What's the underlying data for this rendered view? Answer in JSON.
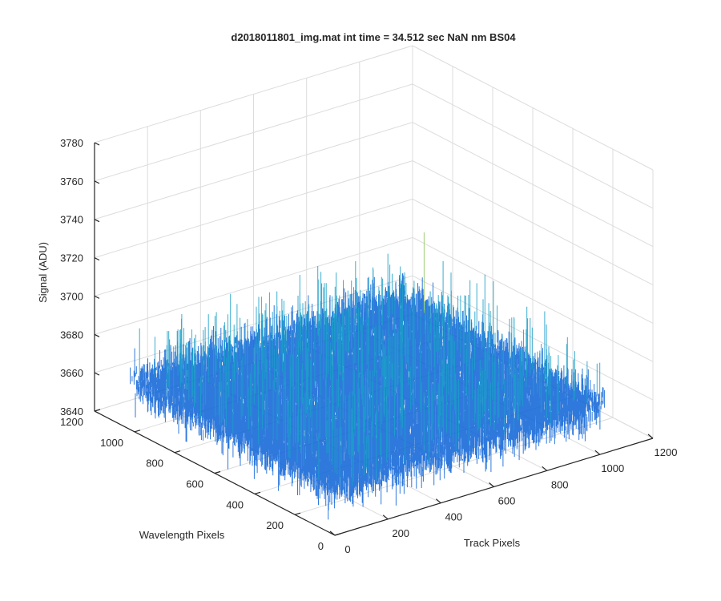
{
  "chart_data": {
    "type": "surface",
    "title": "d2018011801_img.mat int time = 34.512 sec  NaN nm BS04",
    "xlabel": "Track Pixels",
    "ylabel": "Wavelength Pixels",
    "zlabel": "Signal (ADU)",
    "xlim": [
      0,
      1200
    ],
    "ylim": [
      0,
      1200
    ],
    "zlim": [
      3640,
      3780
    ],
    "xticks": [
      "0",
      "200",
      "400",
      "600",
      "800",
      "1000",
      "1200"
    ],
    "yticks": [
      "0",
      "200",
      "400",
      "600",
      "800",
      "1000",
      "1200"
    ],
    "zticks": [
      "3640",
      "3660",
      "3680",
      "3700",
      "3720",
      "3740",
      "3760",
      "3780"
    ],
    "grid": true,
    "colormap": "parula",
    "surface": {
      "x_range": [
        0,
        1024
      ],
      "y_range": [
        0,
        1024
      ],
      "signal_mean": 3665,
      "signal_noise_range": [
        3635,
        3745
      ]
    },
    "colors": {
      "low": "#0a62d6",
      "mid": "#1aa0c8",
      "high": "#8ec45a",
      "grid": "#dcdcdc",
      "axis": "#262626"
    }
  }
}
